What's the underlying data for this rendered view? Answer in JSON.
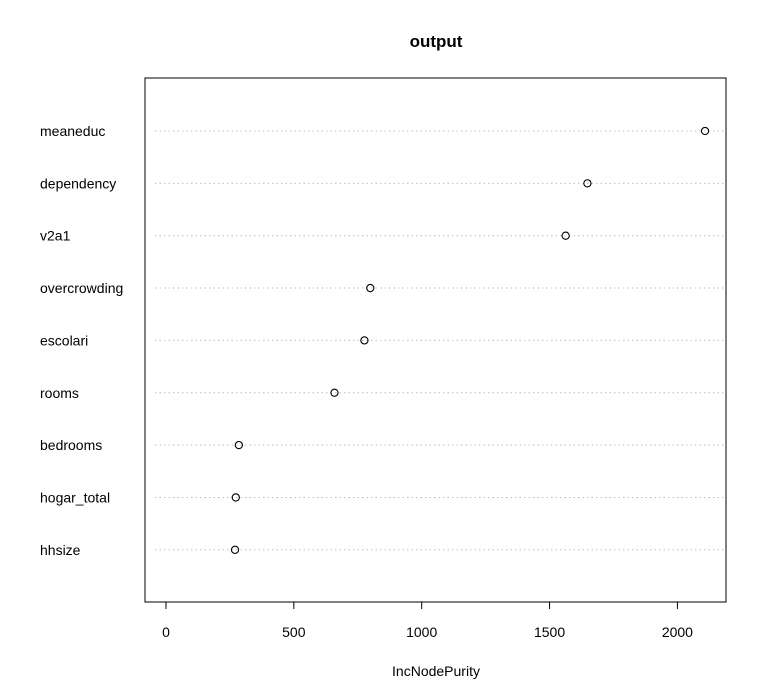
{
  "chart_data": {
    "type": "scatter",
    "subtype": "dotchart",
    "title": "output",
    "xlabel": "IncNodePurity",
    "ylabel": "",
    "categories": [
      "meaneduc",
      "dependency",
      "v2a1",
      "overcrowding",
      "escolari",
      "rooms",
      "bedrooms",
      "hogar_total",
      "hhsize"
    ],
    "values": [
      2108,
      1648,
      1563,
      799,
      776,
      659,
      285,
      273,
      270
    ],
    "xlim": [
      -82,
      2190
    ],
    "xticks": [
      0,
      500,
      1000,
      1500,
      2000
    ],
    "xtick_labels": [
      "0",
      "500",
      "1000",
      "1500",
      "2000"
    ],
    "grid": "dotted horizontal guide lines per category",
    "colors": {
      "point_stroke": "#000000",
      "guide_line": "#bebebe",
      "frame": "#000000"
    }
  }
}
